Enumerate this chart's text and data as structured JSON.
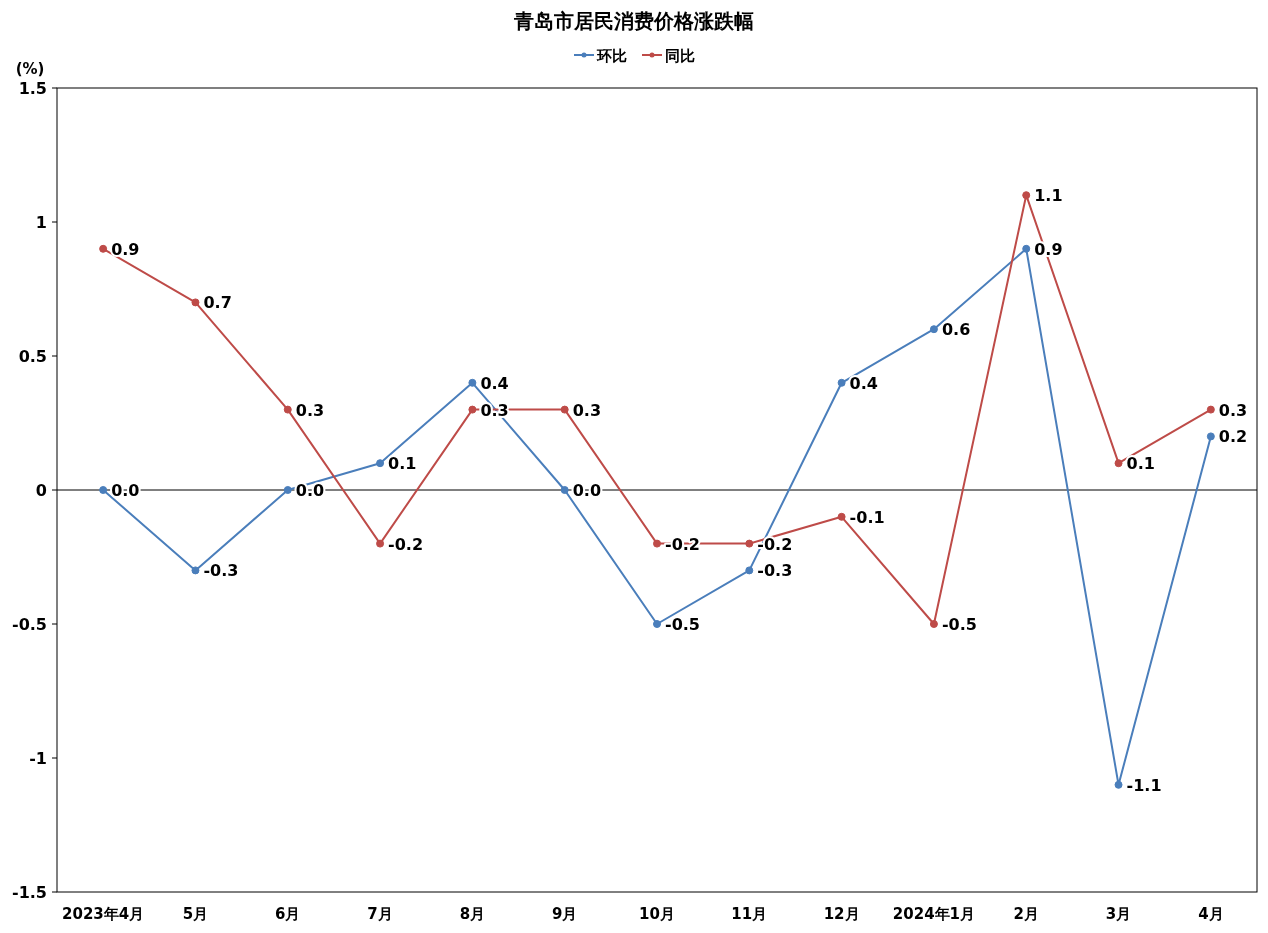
{
  "chart_data": {
    "type": "line",
    "title": "青岛市居民消费价格涨跌幅",
    "ylabel": "(%)",
    "categories": [
      "2023年4月",
      "5月",
      "6月",
      "7月",
      "8月",
      "9月",
      "10月",
      "11月",
      "12月",
      "2024年1月",
      "2月",
      "3月",
      "4月"
    ],
    "series": [
      {
        "name": "环比",
        "color": "#4a7ebb",
        "values": [
          0.0,
          -0.3,
          0.0,
          0.1,
          0.4,
          0.0,
          -0.5,
          -0.3,
          0.4,
          0.6,
          0.9,
          -1.1,
          0.2
        ],
        "value_labels": [
          "0.0",
          "-0.3",
          "0.0",
          "0.1",
          "0.4",
          "0.0",
          "-0.5",
          "-0.3",
          "0.4",
          "0.6",
          "0.9",
          "-1.1",
          "0.2"
        ]
      },
      {
        "name": "同比",
        "color": "#be4b48",
        "values": [
          0.9,
          0.7,
          0.3,
          -0.2,
          0.3,
          0.3,
          -0.2,
          -0.2,
          -0.1,
          -0.5,
          1.1,
          0.1,
          0.3
        ],
        "value_labels": [
          "0.9",
          "0.7",
          "0.3",
          "-0.2",
          "0.3",
          "0.3",
          "-0.2",
          "-0.2",
          "-0.1",
          "-0.5",
          "1.1",
          "0.1",
          "0.3"
        ]
      }
    ],
    "ylim": [
      -1.5,
      1.5
    ],
    "yticks": [
      -1.5,
      -1,
      -0.5,
      0,
      0.5,
      1,
      1.5
    ],
    "ref_lines": [
      {
        "axis": "y",
        "value": 0,
        "color": "#000000"
      }
    ],
    "grid": false,
    "legend": "top",
    "marker": "circle",
    "line_style": "solid"
  }
}
